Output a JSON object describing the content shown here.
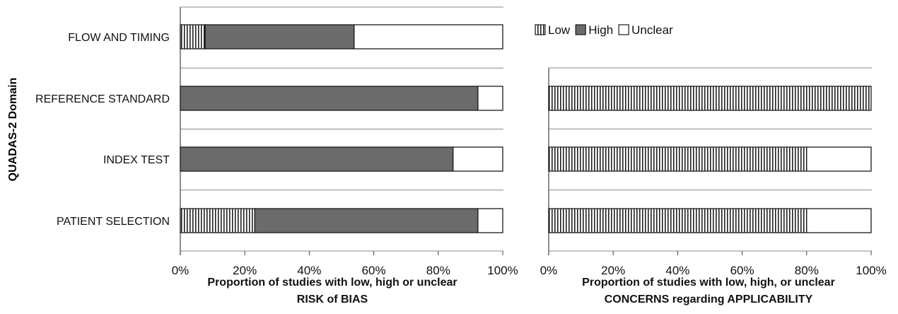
{
  "y_axis_title": "QUADAS-2 Domain",
  "legend": [
    {
      "label": "Low",
      "pattern": "vstripe"
    },
    {
      "label": "High",
      "pattern": "solid"
    },
    {
      "label": "Unclear",
      "pattern": "white"
    }
  ],
  "colors": {
    "high": "#6b6b6b",
    "stripe": "#222222",
    "bar_border": "#1a1a1a",
    "grid": "#888888"
  },
  "chart_data": [
    {
      "type": "bar",
      "orientation": "horizontal",
      "stacked": true,
      "categories": [
        "FLOW AND TIMING",
        "REFERENCE STANDARD",
        "INDEX TEST",
        "PATIENT SELECTION"
      ],
      "series": [
        {
          "name": "Low",
          "values": [
            7.7,
            0,
            0,
            23.1
          ]
        },
        {
          "name": "High",
          "values": [
            46.2,
            92.3,
            84.6,
            69.2
          ]
        },
        {
          "name": "Unclear",
          "values": [
            46.1,
            7.7,
            15.4,
            7.7
          ]
        }
      ],
      "xlim": [
        0,
        100
      ],
      "xticks": [
        "0%",
        "20%",
        "40%",
        "60%",
        "80%",
        "100%"
      ],
      "xlabel": [
        "Proportion of studies with low, high or unclear",
        "RISK of BIAS"
      ],
      "ylabel": "QUADAS-2 Domain"
    },
    {
      "type": "bar",
      "orientation": "horizontal",
      "stacked": true,
      "categories": [
        "REFERENCE STANDARD",
        "INDEX TEST",
        "PATIENT SELECTION"
      ],
      "series": [
        {
          "name": "Low",
          "values": [
            100,
            80,
            80
          ]
        },
        {
          "name": "High",
          "values": [
            0,
            0,
            0
          ]
        },
        {
          "name": "Unclear",
          "values": [
            0,
            20,
            20
          ]
        }
      ],
      "xlim": [
        0,
        100
      ],
      "xticks": [
        "0%",
        "20%",
        "40%",
        "60%",
        "80%",
        "100%"
      ],
      "xlabel": [
        "Proportion of studies with low, high, or unclear",
        "CONCERNS regarding APPLICABILITY"
      ]
    }
  ]
}
